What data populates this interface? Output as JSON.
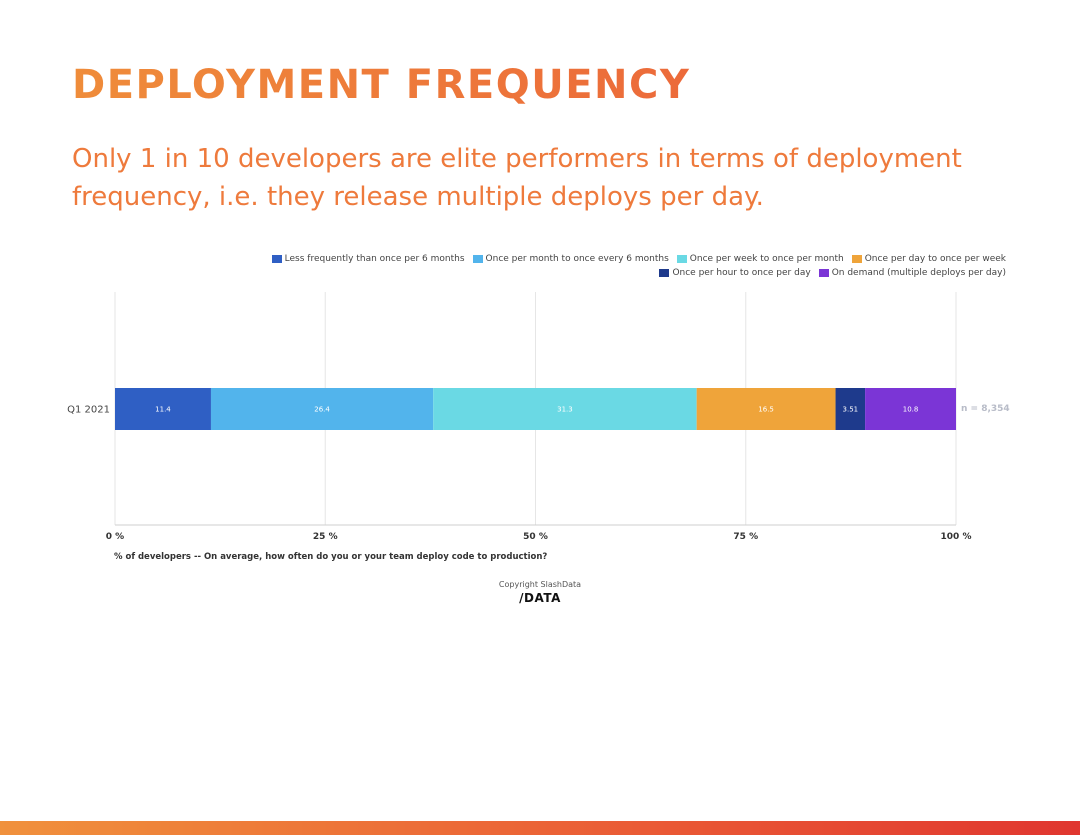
{
  "page": {
    "title": "DEPLOYMENT FREQUENCY",
    "subtitle": "Only 1 in 10 developers are elite performers in terms of deployment frequency, i.e. they release multiple deploys per day.",
    "caption": "% of developers -- On average, how often do you or your team deploy code to production?",
    "copyright": "Copyright SlashData",
    "logo_text": "/DATA",
    "brand_gradient": [
      "#f0913c",
      "#e0362f"
    ]
  },
  "chart_data": {
    "type": "bar",
    "orientation": "horizontal",
    "stacked": true,
    "categories": [
      "Q1 2021"
    ],
    "series": [
      {
        "name": "Less frequently than once per 6 months",
        "values": [
          11.4
        ],
        "label": "11.4",
        "color": "#2f5fc4"
      },
      {
        "name": "Once per month to once every 6 months",
        "values": [
          26.4
        ],
        "label": "26.4",
        "color": "#52b4ec"
      },
      {
        "name": "Once per week to once per month",
        "values": [
          31.3
        ],
        "label": "31.3",
        "color": "#6ad9e4"
      },
      {
        "name": "Once per day to once per week",
        "values": [
          16.5
        ],
        "label": "16.5",
        "color": "#efa43a"
      },
      {
        "name": "Once per hour to once per day",
        "values": [
          3.51
        ],
        "label": "3.51",
        "color": "#1e3a8c"
      },
      {
        "name": "On demand (multiple deploys per day)",
        "values": [
          10.8
        ],
        "label": "10.8",
        "color": "#7b35d6"
      }
    ],
    "x_ticks": [
      "0 %",
      "25 %",
      "50 %",
      "75 %",
      "100 %"
    ],
    "x_tick_values": [
      0,
      25,
      50,
      75,
      100
    ],
    "xlim": [
      0,
      100
    ],
    "annotation": "n = 8,354",
    "legend_position": "top-right",
    "grid": true
  }
}
